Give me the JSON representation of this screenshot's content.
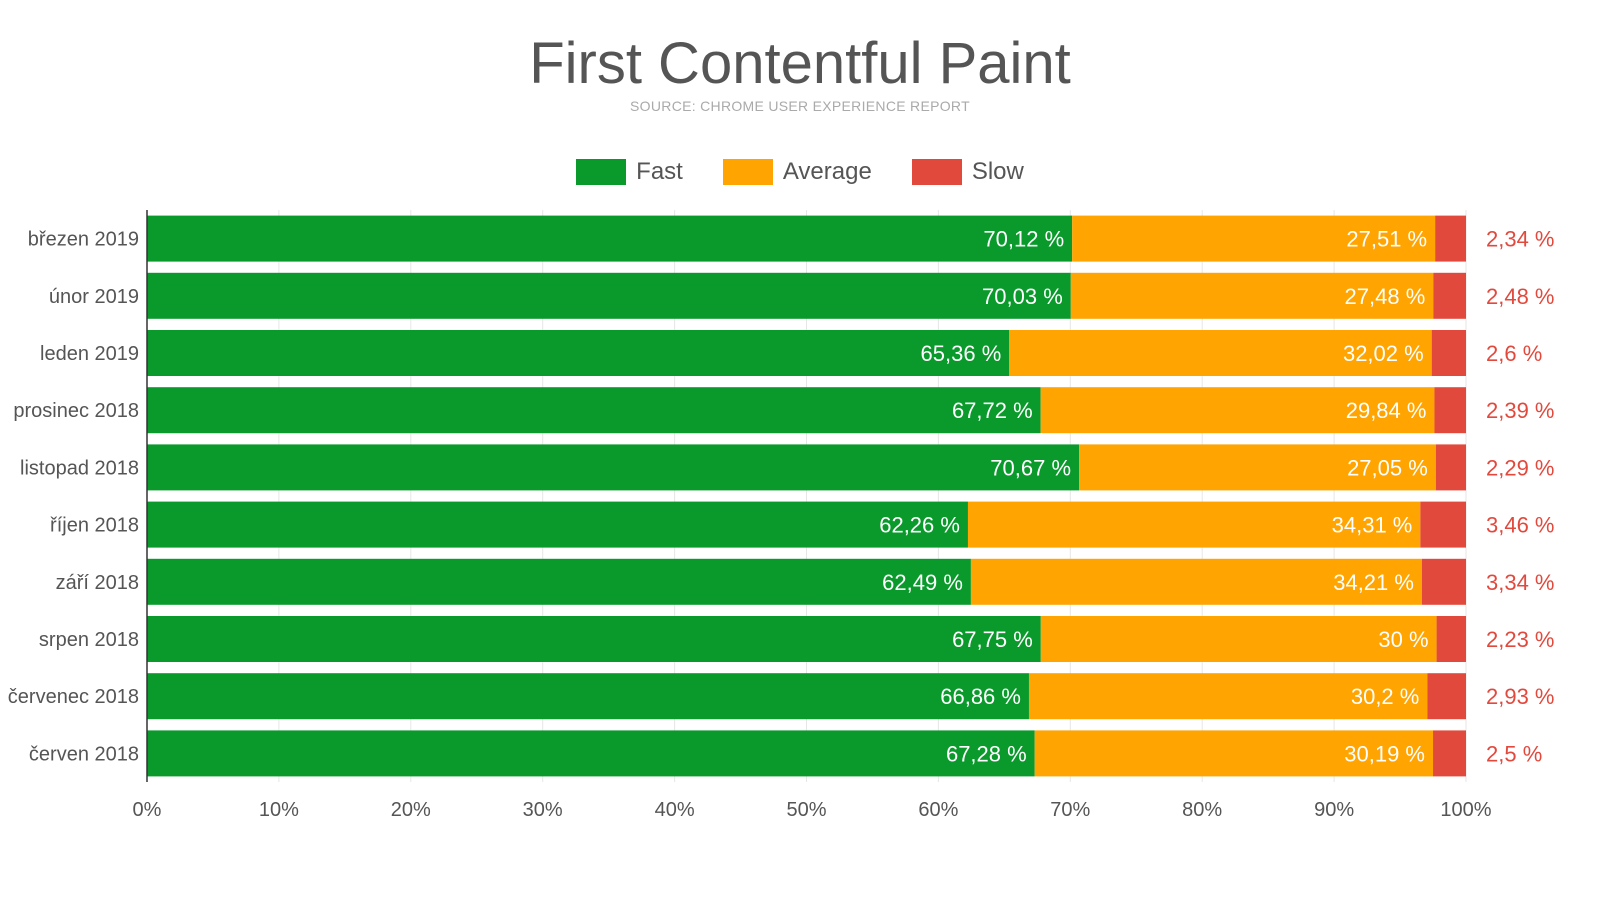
{
  "chart_data": {
    "type": "bar",
    "orientation": "horizontal",
    "stacked": true,
    "title": "First Contentful Paint",
    "subtitle": "SOURCE: CHROME USER EXPERIENCE REPORT",
    "categories": [
      "březen 2019",
      "únor 2019",
      "leden 2019",
      "prosinec 2018",
      "listopad 2018",
      "říjen 2018",
      "září 2018",
      "srpen 2018",
      "červenec 2018",
      "červen 2018"
    ],
    "series": [
      {
        "name": "Fast",
        "color": "#0a9a2c",
        "values": [
          70.12,
          70.03,
          65.36,
          67.72,
          70.67,
          62.26,
          62.49,
          67.75,
          66.86,
          67.28
        ],
        "labels": [
          "70,12 %",
          "70,03 %",
          "65,36 %",
          "67,72 %",
          "70,67 %",
          "62,26 %",
          "62,49 %",
          "67,75 %",
          "66,86 %",
          "67,28 %"
        ]
      },
      {
        "name": "Average",
        "color": "#ffa400",
        "values": [
          27.51,
          27.48,
          32.02,
          29.84,
          27.05,
          34.31,
          34.21,
          30,
          30.2,
          30.19
        ],
        "labels": [
          "27,51 %",
          "27,48 %",
          "32,02 %",
          "29,84 %",
          "27,05 %",
          "34,31 %",
          "34,21 %",
          "30 %",
          "30,2 %",
          "30,19 %"
        ]
      },
      {
        "name": "Slow",
        "color": "#e2493d",
        "values": [
          2.34,
          2.48,
          2.6,
          2.39,
          2.29,
          3.46,
          3.34,
          2.23,
          2.93,
          2.5
        ],
        "labels": [
          "2,34 %",
          "2,48 %",
          "2,6 %",
          "2,39 %",
          "2,29 %",
          "3,46 %",
          "3,34 %",
          "2,23 %",
          "2,93 %",
          "2,5 %"
        ]
      }
    ],
    "xlim": [
      0,
      100
    ],
    "xticks": [
      "0%",
      "10%",
      "20%",
      "30%",
      "40%",
      "50%",
      "60%",
      "70%",
      "80%",
      "90%",
      "100%"
    ],
    "grid": true,
    "legend_position": "top"
  }
}
